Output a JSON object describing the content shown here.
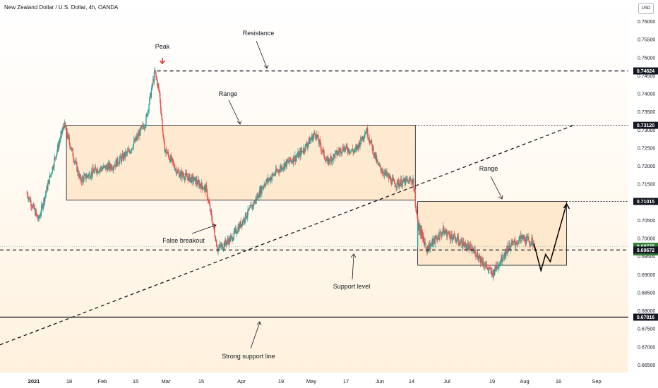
{
  "header": {
    "title": "New Zealand Dollar / U.S. Dollar, 4h, OANDA"
  },
  "currency_badge": "USD",
  "colors": {
    "bull": "#26a69a",
    "bear": "#ef5350",
    "range_fill": "#fde3c0",
    "background_bottom": "#fff1dd",
    "label_bg": "#131722",
    "current_price_bg": "#2e7d32",
    "arrow_red": "#e53935"
  },
  "price_axis": {
    "ticks": [
      "0.76000",
      "0.75500",
      "0.75000",
      "0.74500",
      "0.74000",
      "0.73500",
      "0.73000",
      "0.72500",
      "0.72000",
      "0.71500",
      "0.71000",
      "0.70500",
      "0.70000",
      "0.69500",
      "0.69000",
      "0.68500",
      "0.68000",
      "0.67500",
      "0.67000",
      "0.66500"
    ],
    "price_labels": [
      {
        "name": "resistance-price-label",
        "text": "0.74624",
        "value": 0.74624,
        "style": "dark"
      },
      {
        "name": "upper-range-price-label",
        "text": "0.73120",
        "value": 0.7312,
        "style": "dark"
      },
      {
        "name": "second-range-price-label",
        "text": "0.71015",
        "value": 0.71015,
        "style": "dark"
      },
      {
        "name": "current-price-label",
        "text": "0.69775",
        "countdown": "02:53:16",
        "value": 0.69775,
        "style": "current"
      },
      {
        "name": "support-price-label",
        "text": "0.69672",
        "value": 0.69672,
        "style": "dark"
      },
      {
        "name": "strong-support-price-label",
        "text": "0.67816",
        "value": 0.67816,
        "style": "dark"
      }
    ]
  },
  "time_axis": {
    "ticks": [
      "2021",
      "18",
      "Feb",
      "15",
      "Mar",
      "15",
      "Apr",
      "19",
      "May",
      "17",
      "Jun",
      "14",
      "Jul",
      "19",
      "Aug",
      "16",
      "Sep"
    ]
  },
  "annotations": {
    "peak": "Peak",
    "resistance": "Resistance",
    "range_upper": "Range",
    "range_lower": "Range",
    "false_breakout": "False breakout",
    "support_level": "Support level",
    "strong_support": "Strong support line"
  },
  "chart_data": {
    "type": "candlestick",
    "title": "New Zealand Dollar / U.S. Dollar, 4h, OANDA",
    "xlabel": "",
    "ylabel": "",
    "ylim": [
      0.6625,
      0.7625
    ],
    "x_range": [
      "2021-01-04",
      "2021-09-02"
    ],
    "grid": false,
    "levels": {
      "resistance": 0.74624,
      "range_top": 0.7312,
      "range_bottom": 0.7105,
      "second_range_top": 0.71015,
      "second_range_bottom": 0.6925,
      "support": 0.69672,
      "strong_support": 0.67816,
      "current_price": 0.69775
    },
    "trendline": {
      "start": [
        "2021-01-04",
        0.6705
      ],
      "end": [
        "2021-08-24",
        0.7312
      ]
    },
    "range_boxes": [
      {
        "start": "2021-01-18",
        "end": "2021-06-17",
        "top": 0.7312,
        "bottom": 0.7105
      },
      {
        "start": "2021-06-18",
        "end": "2021-08-21",
        "top": 0.71015,
        "bottom": 0.6925
      }
    ],
    "projection": {
      "x": [
        "2021-08-07",
        "2021-08-10",
        "2021-08-12",
        "2021-08-14",
        "2021-08-21"
      ],
      "y": [
        0.6985,
        0.691,
        0.6955,
        0.6935,
        0.7095
      ]
    },
    "price_path": {
      "x": [
        "2021-01-01",
        "2021-01-06",
        "2021-01-13",
        "2021-01-17",
        "2021-01-24",
        "2021-01-31",
        "2021-02-07",
        "2021-02-14",
        "2021-02-21",
        "2021-02-25",
        "2021-02-27",
        "2021-03-01",
        "2021-03-07",
        "2021-03-14",
        "2021-03-19",
        "2021-03-24",
        "2021-03-30",
        "2021-04-03",
        "2021-04-08",
        "2021-04-13",
        "2021-04-21",
        "2021-04-28",
        "2021-05-05",
        "2021-05-10",
        "2021-05-17",
        "2021-05-22",
        "2021-05-27",
        "2021-06-01",
        "2021-06-08",
        "2021-06-16",
        "2021-06-18",
        "2021-06-22",
        "2021-06-29",
        "2021-07-06",
        "2021-07-13",
        "2021-07-20",
        "2021-07-27",
        "2021-08-02",
        "2021-08-07"
      ],
      "y": [
        0.7125,
        0.705,
        0.722,
        0.7315,
        0.716,
        0.719,
        0.72,
        0.724,
        0.732,
        0.746,
        0.74,
        0.725,
        0.718,
        0.716,
        0.7135,
        0.697,
        0.7,
        0.704,
        0.709,
        0.715,
        0.72,
        0.723,
        0.729,
        0.721,
        0.725,
        0.724,
        0.73,
        0.72,
        0.715,
        0.716,
        0.704,
        0.697,
        0.702,
        0.699,
        0.696,
        0.69,
        0.6975,
        0.7,
        0.6985
      ]
    }
  }
}
